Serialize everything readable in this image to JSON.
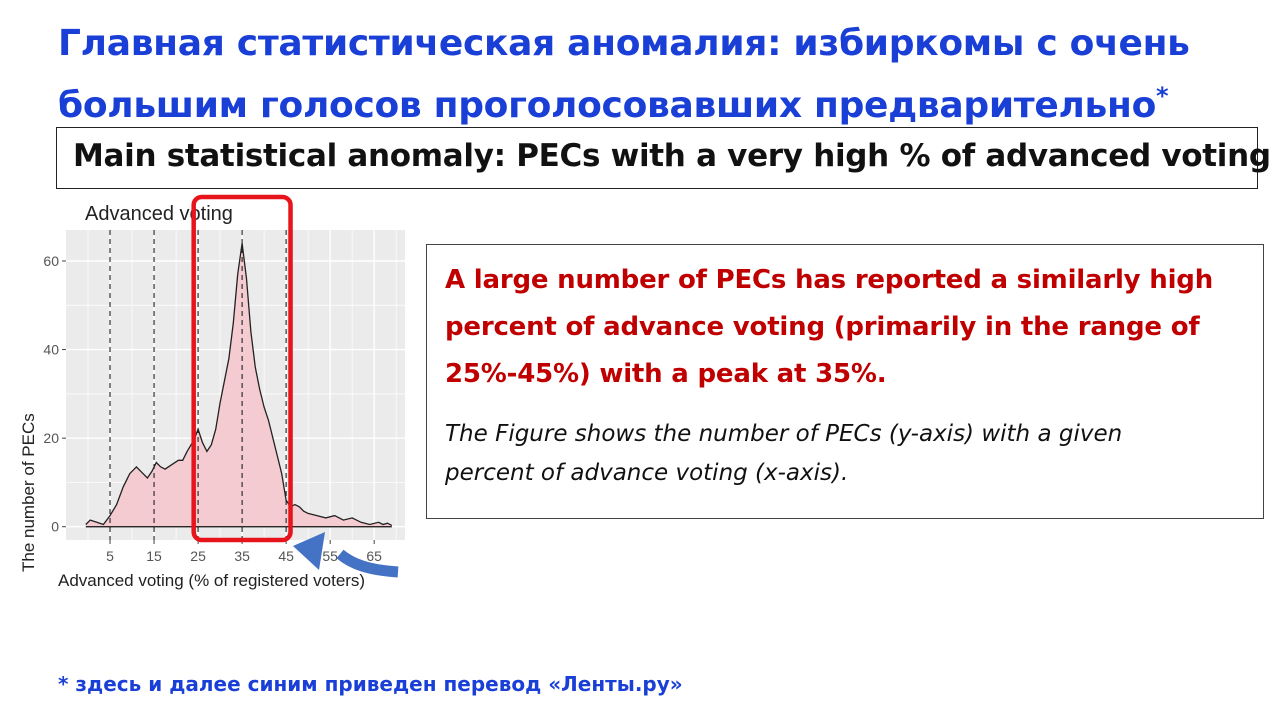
{
  "slide": {
    "ru_title_line1": "Главная статистическая аномалия: избиркомы с очень",
    "ru_title_line2": "большим голосов проголосовавших предварительно",
    "ru_title_mark": "*",
    "en_title": "Main statistical anomaly: PECs with a very high % of advanced voting",
    "description_main_lines": [
      "A large number of PECs has reported a similarly high",
      "percent of advance voting (primarily in the range of",
      "25%-45%) with a peak at 35%."
    ],
    "description_note_lines": [
      "The Figure shows the number of PECs (y-axis) with a given",
      "percent of advance voting (x-axis)."
    ],
    "footnote": "* здесь и далее синим приведен перевод «Ленты.ру»"
  },
  "colors": {
    "ru_text": "#1a3fd6",
    "highlight_text": "#c00000",
    "highlight_box": "#e8141c",
    "arrow": "#4472c4",
    "density_fill": "#f4cbd0",
    "panel_bg": "#ebebeb"
  },
  "chart_data": {
    "type": "area",
    "title": "Advanced voting",
    "xlabel": "Advanced voting (% of registered voters)",
    "ylabel": "The number of PECs",
    "xlim": [
      -5,
      72
    ],
    "ylim": [
      -3,
      67
    ],
    "x_ticks": [
      5,
      15,
      25,
      35,
      45,
      55,
      65
    ],
    "y_ticks": [
      0,
      20,
      40,
      60
    ],
    "dashed_vlines": [
      5,
      15,
      25,
      35,
      45
    ],
    "highlight_range": [
      24,
      46
    ],
    "grid": true,
    "series": [
      {
        "x": [
          -0.5,
          0.5,
          2,
          3.5,
          5,
          6.5,
          8,
          9.5,
          11,
          12.5,
          13.5,
          14.5,
          15.5,
          16.5,
          17.5,
          19,
          20.5,
          21.5,
          22.5,
          24,
          25,
          26,
          27,
          28,
          29,
          30,
          31,
          32,
          33,
          34,
          35,
          36,
          37,
          38,
          39,
          40,
          41,
          42,
          43,
          44,
          45,
          46,
          47,
          48,
          49,
          50,
          52,
          54,
          56,
          58,
          60,
          62,
          64,
          66,
          67,
          68,
          69
        ],
        "y": [
          0.5,
          1.5,
          1.0,
          0.5,
          2.5,
          5.0,
          9.0,
          12.0,
          13.5,
          12.0,
          11.0,
          12.5,
          14.5,
          13.5,
          13.0,
          14.0,
          15.0,
          15.0,
          17.0,
          19.5,
          22.0,
          19.0,
          17.0,
          18.5,
          22.0,
          28.0,
          33.0,
          38.0,
          46.0,
          57.0,
          64.0,
          56.0,
          44.0,
          36.0,
          31.0,
          27.0,
          24.0,
          20.0,
          16.0,
          12.0,
          6.0,
          4.5,
          5.0,
          4.5,
          3.5,
          3.0,
          2.5,
          2.0,
          2.5,
          1.5,
          2.0,
          1.0,
          0.5,
          1.0,
          0.5,
          0.8,
          0.3
        ]
      }
    ]
  }
}
